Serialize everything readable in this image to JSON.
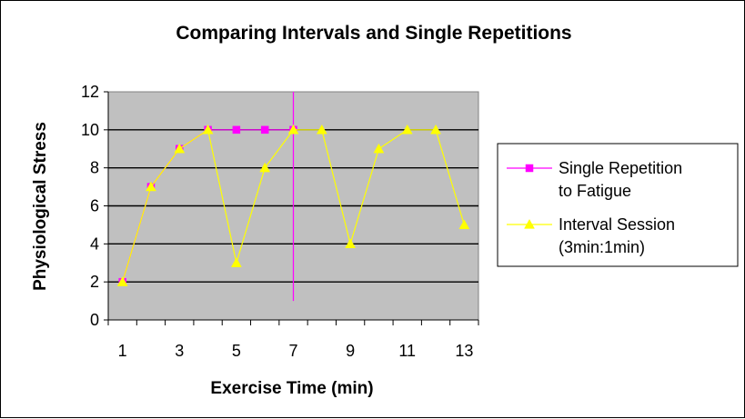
{
  "chart_data": {
    "type": "line",
    "title": "Comparing Intervals and Single Repetitions",
    "xlabel": "Exercise Time (min)",
    "ylabel": "Physiological Stress",
    "xlim": [
      0.5,
      13.5
    ],
    "ylim": [
      0,
      12
    ],
    "x_ticks": [
      "1",
      "3",
      "5",
      "7",
      "9",
      "11",
      "13"
    ],
    "y_ticks": [
      "0",
      "2",
      "4",
      "6",
      "8",
      "10",
      "12"
    ],
    "grid": true,
    "plot_background": "#c0c0c0",
    "legend_position": "right",
    "series": [
      {
        "name_lines": [
          "Single Repetition",
          "to Fatigue"
        ],
        "color": "#ff00ff",
        "marker": "square",
        "x": [
          1,
          2,
          3,
          4,
          5,
          6,
          7
        ],
        "y": [
          2,
          7,
          9,
          10,
          10,
          10,
          10
        ]
      },
      {
        "name_lines": [
          "Interval Session",
          "(3min:1min)"
        ],
        "color": "#ffff00",
        "marker": "triangle",
        "x": [
          1,
          2,
          3,
          4,
          5,
          6,
          7,
          8,
          9,
          10,
          11,
          12,
          13
        ],
        "y": [
          2,
          7,
          9,
          10,
          3,
          8,
          10,
          10,
          4,
          9,
          10,
          10,
          5
        ]
      }
    ],
    "annotations": [
      {
        "type": "vertical-line",
        "x": 7,
        "y_from": 1,
        "y_to": 12,
        "color": "#ff00ff"
      }
    ]
  }
}
